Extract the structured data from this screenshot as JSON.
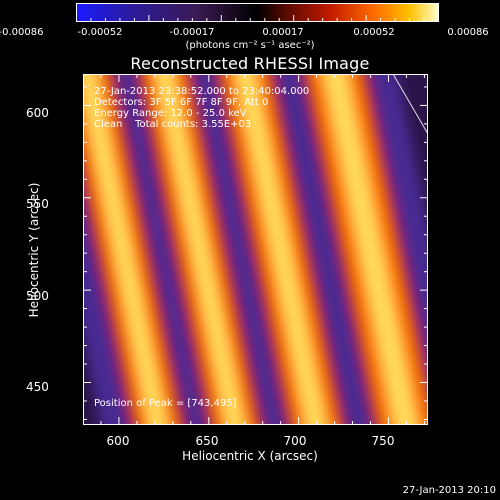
{
  "colorbar": {
    "ticks": [
      "-0.00086",
      "-0.00052",
      "-0.00017",
      "0.00017",
      "0.00052",
      "0.00086"
    ],
    "unit": "(photons cm⁻² s⁻¹ asec⁻²)"
  },
  "annotations": {
    "time": "27-Jan-2013 23:38:52.000 to 23:40:04.000",
    "detectors": "Detectors: 3F 5F 6F 7F 8F 9F, Att 0",
    "energy": "Energy Range: 12.0 - 25.0 keV",
    "clean": "Clean    Total counts: 3.55E+03",
    "peak": "Position of Peak = [743,495]"
  },
  "footer": "27-Jan-2013 20:10",
  "chart_data": {
    "type": "heatmap",
    "title": "Reconstructed RHESSI Image",
    "xlabel": "Heliocentric X (arcsec)",
    "ylabel": "Heliocentric Y (arcsec)",
    "xlim": [
      580,
      772
    ],
    "ylim": [
      427,
      617
    ],
    "xticks": [
      600,
      650,
      700,
      750
    ],
    "yticks": [
      450,
      500,
      550,
      600
    ],
    "colormap": "red-temperature",
    "color_range": [
      -0.00086,
      0.00086
    ],
    "peak": [
      743,
      495
    ],
    "colorbar_stops": [
      "#1a1aff",
      "#2b1c9e",
      "#3b1a55",
      "#000000",
      "#5a0a00",
      "#c21a00",
      "#ff6a00",
      "#ffc000",
      "#ffffcc"
    ]
  }
}
